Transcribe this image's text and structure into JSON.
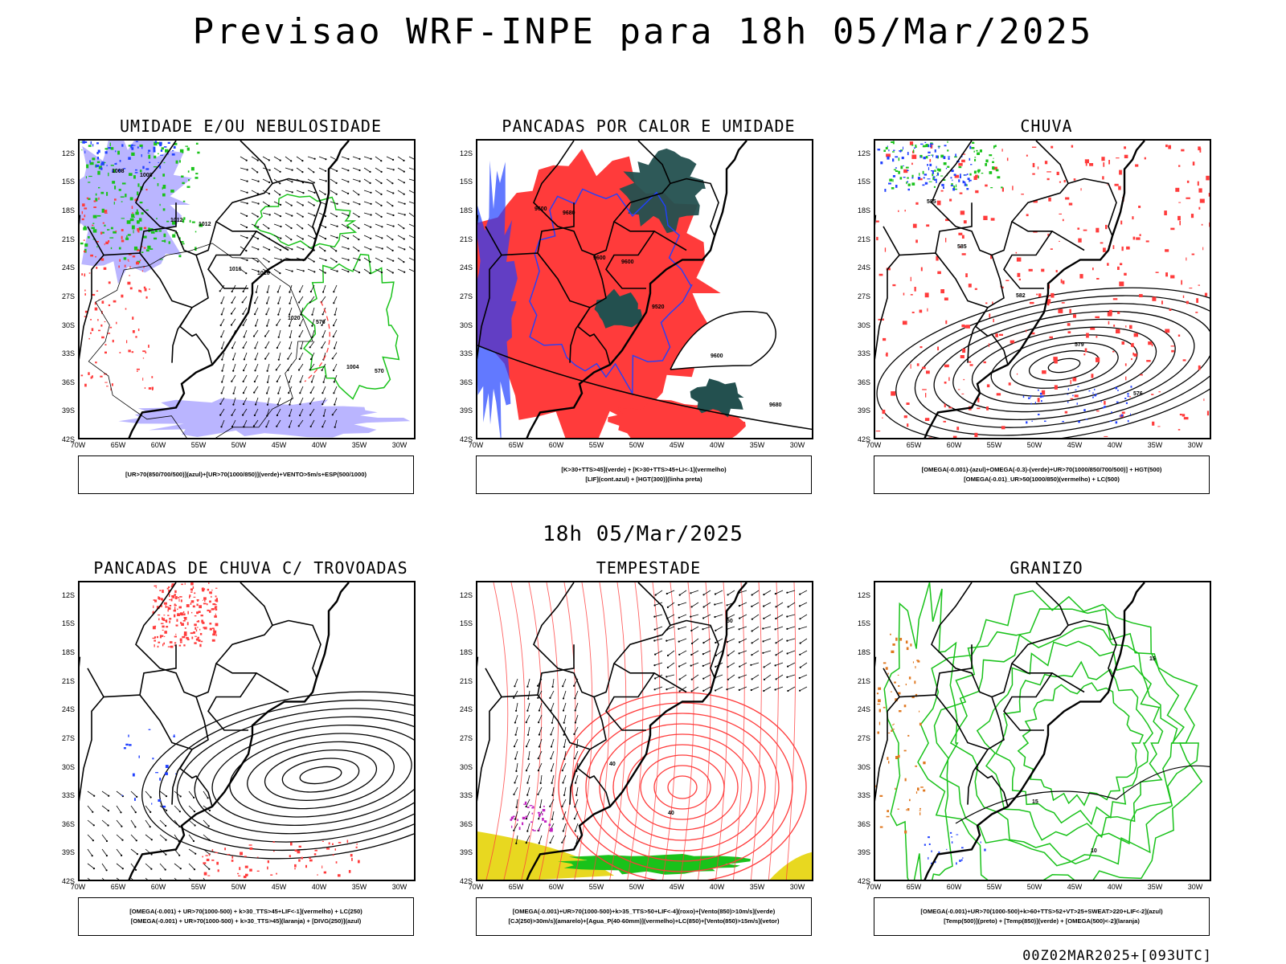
{
  "main_title": "Previsao WRF-INPE  para 18h 05/Mar/2025",
  "mid_title": "18h 05/Mar/2025",
  "footer": "00Z02MAR2025+[093UTC]",
  "lat_ticks": [
    "12S",
    "15S",
    "18S",
    "21S",
    "24S",
    "27S",
    "30S",
    "33S",
    "36S",
    "39S",
    "42S"
  ],
  "lon_ticks": [
    "70W",
    "65W",
    "60W",
    "55W",
    "50W",
    "45W",
    "40W",
    "35W",
    "30W"
  ],
  "colors": {
    "blue": "#2040ff",
    "green": "#19c21a",
    "red": "#ff3b3b",
    "lavender": "#a9a3ff",
    "darkteal": "#23504f",
    "yellow": "#e8d820",
    "magenta": "#c020c0",
    "orange": "#e07820"
  },
  "panels": [
    {
      "title": "UMIDADE E/OU NEBULOSIDADE",
      "legend": [
        "[UR>70(850/700/500)](azul)+[UR>70(1000/850)](verde)+VENTO>5m/s+ESP(500/1000)"
      ],
      "contour_labels": [
        "1008",
        "1012",
        "1016",
        "1020",
        "1004",
        "1008",
        "1012",
        "1016",
        "576",
        "570"
      ]
    },
    {
      "title": "PANCADAS POR CALOR E UMIDADE",
      "legend": [
        "[K>30+TTS>45](verde) + [K>30+TTS>45+LI<-1](vermelho)",
        "[LIF](cont.azul) + [HGT(300)](linha preta)"
      ],
      "contour_labels": [
        "9600",
        "9600",
        "9520",
        "9600",
        "9680",
        "9680",
        "9600"
      ]
    },
    {
      "title": "CHUVA",
      "legend": [
        "[OMEGA(-0.001)-(azul)+OMEGA(-0.3)-(verde)+UR>70(1000/850/700/500)] + HGT(500)",
        "[OMEGA(-0.01)_UR>50(1000/850)(vermelho) + LC(500)"
      ],
      "contour_labels": [
        "585",
        "582",
        "579",
        "576",
        "585"
      ]
    },
    {
      "title": "PANCADAS DE CHUVA C/ TROVOADAS",
      "legend": [
        "[OMEGA(-0.001) + UR>70(1000-500) + k>30_TTS>45+LIF<-1](vermelho) + LC(250)",
        "[OMEGA(-0.001) + UR>70(1000-500) + k>30_TTS>45](laranja) + [DIVG(250)](azul)"
      ],
      "contour_labels": []
    },
    {
      "title": "TEMPESTADE",
      "legend": [
        "[OMEGA(-0.001)+UR>70(1000-500)+k>35_TTS>50+LIF<-4](roxo)+[Vento(850)>10m/s](verde)",
        "[CJ(250)>30m/s](amarelo)+[Agua_P(40-60mm)](vermelho)+LC(850)+[Vento(850)>15m/s](vetor)"
      ],
      "contour_labels": [
        "40",
        "40",
        "50"
      ]
    },
    {
      "title": "GRANIZO",
      "legend": [
        "[OMEGA(-0.001)+UR>70(1000-500)+k>60+TTS>52+VT>25+SWEAT>220+LIF<-2](azul)",
        "[Temp(500)](preto) + [Temp(850)](verde) + [OMEGA(500)<-2](laranja)"
      ],
      "contour_labels": [
        "15",
        "10",
        "15"
      ]
    }
  ]
}
